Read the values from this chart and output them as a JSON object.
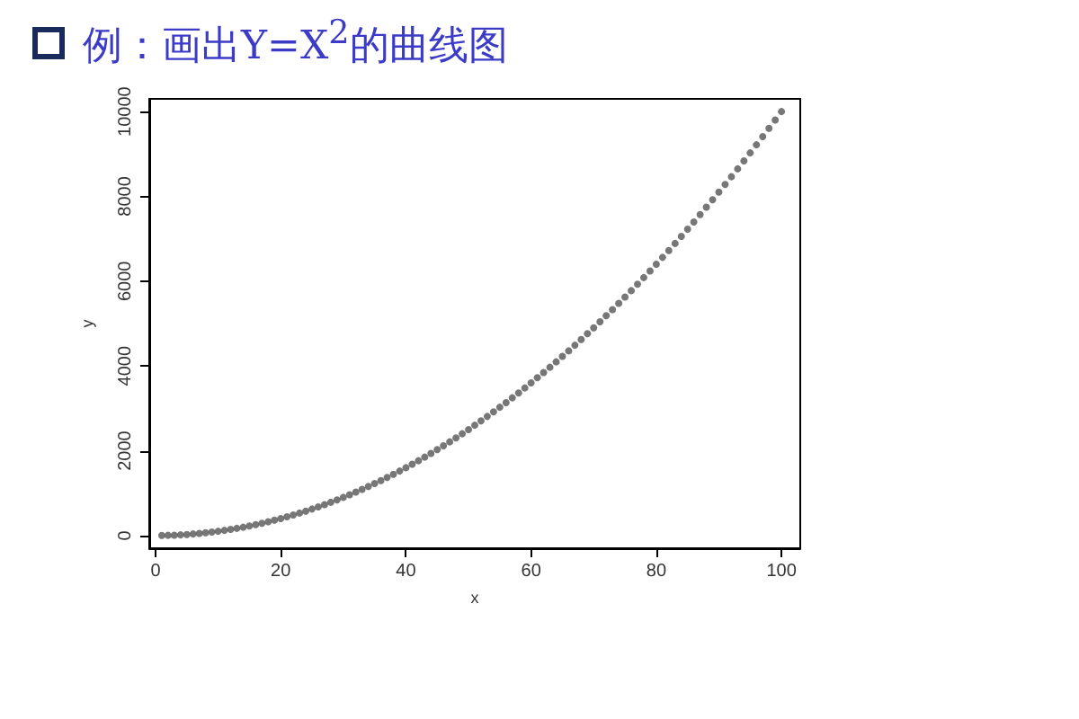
{
  "chart_data": {
    "type": "scatter",
    "title": "例：画出Y=X$^{2}$的曲线图",
    "xlabel": "x",
    "ylabel": "y",
    "x": [
      1,
      2,
      3,
      4,
      5,
      6,
      7,
      8,
      9,
      10,
      11,
      12,
      13,
      14,
      15,
      16,
      17,
      18,
      19,
      20,
      21,
      22,
      23,
      24,
      25,
      26,
      27,
      28,
      29,
      30,
      31,
      32,
      33,
      34,
      35,
      36,
      37,
      38,
      39,
      40,
      41,
      42,
      43,
      44,
      45,
      46,
      47,
      48,
      49,
      50,
      51,
      52,
      53,
      54,
      55,
      56,
      57,
      58,
      59,
      60,
      61,
      62,
      63,
      64,
      65,
      66,
      67,
      68,
      69,
      70,
      71,
      72,
      73,
      74,
      75,
      76,
      77,
      78,
      79,
      80,
      81,
      82,
      83,
      84,
      85,
      86,
      87,
      88,
      89,
      90,
      91,
      92,
      93,
      94,
      95,
      96,
      97,
      98,
      99,
      100
    ],
    "series": [
      {
        "color": "#555555",
        "values": [
          1,
          4,
          9,
          16,
          25,
          36,
          49,
          64,
          81,
          100,
          121,
          144,
          169,
          196,
          225,
          256,
          289,
          324,
          361,
          400,
          441,
          484,
          529,
          576,
          625,
          676,
          729,
          784,
          841,
          900,
          961,
          1024,
          1089,
          1156,
          1225,
          1296,
          1369,
          1444,
          1521,
          1600,
          1681,
          1764,
          1849,
          1936,
          2025,
          2116,
          2209,
          2304,
          2401,
          2500,
          2601,
          2704,
          2809,
          2916,
          3025,
          3136,
          3249,
          3364,
          3481,
          3600,
          3721,
          3844,
          3969,
          4096,
          4225,
          4356,
          4489,
          4624,
          4761,
          4900,
          5041,
          5184,
          5329,
          5476,
          5625,
          5776,
          5929,
          6084,
          6241,
          6400,
          6561,
          6724,
          6889,
          7056,
          7225,
          7396,
          7569,
          7744,
          7921,
          8100,
          8281,
          8464,
          8649,
          8836,
          9025,
          9216,
          9409,
          9604,
          9801,
          10000
        ]
      }
    ],
    "xlim": [
      -1,
      103
    ],
    "xticks": [
      0,
      20,
      40,
      60,
      80,
      100
    ],
    "ylim": [
      -300,
      10300
    ],
    "yticks": [
      0,
      2000,
      4000,
      6000,
      8000,
      10000
    ],
    "marker": "circle"
  }
}
